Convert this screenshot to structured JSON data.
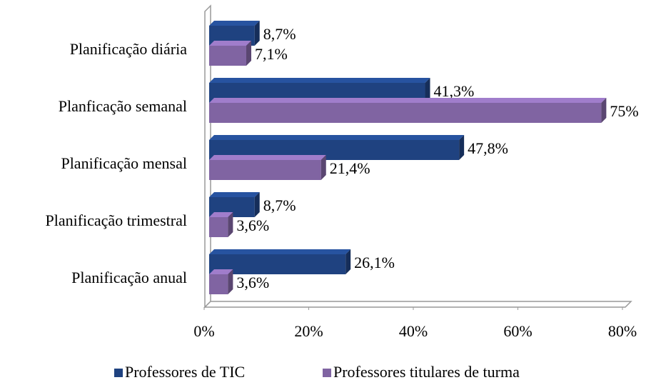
{
  "chart_data": {
    "type": "bar",
    "orientation": "horizontal",
    "three_d": true,
    "categories": [
      "Planificação diária",
      "Planficação semanal",
      "Planificação mensal",
      "Planificação trimestral",
      "Planificação anual"
    ],
    "series": [
      {
        "name": "Professores de TIC",
        "color": "#1f4280",
        "values": [
          8.7,
          41.3,
          47.8,
          8.7,
          26.1
        ],
        "value_labels": [
          "8,7%",
          "41,3%",
          "47,8%",
          "8,7%",
          "26,1%"
        ]
      },
      {
        "name": "Professores titulares de turma",
        "color": "#8064a2",
        "values": [
          7.1,
          75,
          21.4,
          3.6,
          3.6
        ],
        "value_labels": [
          "7,1%",
          "75%",
          "21,4%",
          "3,6%",
          "3,6%"
        ]
      }
    ],
    "xlim": [
      0,
      80
    ],
    "xticks": [
      {
        "value": 0,
        "label": "0%"
      },
      {
        "value": 20,
        "label": "20%"
      },
      {
        "value": 40,
        "label": "40%"
      },
      {
        "value": 60,
        "label": "60%"
      },
      {
        "value": 80,
        "label": "80%"
      }
    ],
    "legend": "bottom"
  }
}
